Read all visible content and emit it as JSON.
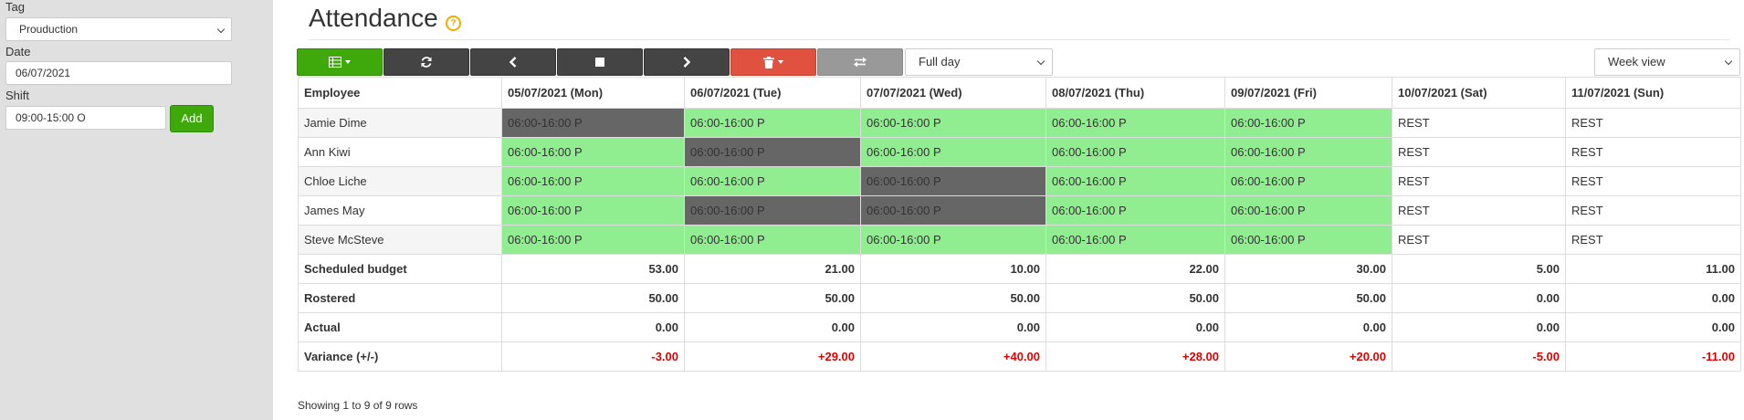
{
  "sidebar": {
    "tag_label": "Tag",
    "tag_value": "Prouduction",
    "date_label": "Date",
    "date_value": "06/07/2021",
    "shift_label": "Shift",
    "shift_value": "09:00-15:00 O",
    "add_label": "Add"
  },
  "header": {
    "title": "Attendance",
    "help_icon": "?"
  },
  "toolbar": {
    "buttons": [
      "table-icon",
      "refresh-icon",
      "chevron-left-icon",
      "stop-icon",
      "chevron-right-icon",
      "trash-icon",
      "swap-icon"
    ],
    "period_select": "Full day",
    "view_select": "Week view"
  },
  "colors": {
    "present": "#90ee90",
    "absent": "#666666",
    "negative": "#e00000",
    "accent": "#3fa80a",
    "danger": "#e05140"
  },
  "table": {
    "header_employee": "Employee",
    "days": [
      "05/07/2021 (Mon)",
      "06/07/2021 (Tue)",
      "07/07/2021 (Wed)",
      "08/07/2021 (Thu)",
      "09/07/2021 (Fri)",
      "10/07/2021 (Sat)",
      "11/07/2021 (Sun)"
    ],
    "rows": [
      {
        "name": "Jamie Dime",
        "cells": [
          "06:00-16:00 P",
          "06:00-16:00 P",
          "06:00-16:00 P",
          "06:00-16:00 P",
          "06:00-16:00 P",
          "REST",
          "REST"
        ]
      },
      {
        "name": "Ann Kiwi",
        "cells": [
          "06:00-16:00 P",
          "06:00-16:00 P",
          "06:00-16:00 P",
          "06:00-16:00 P",
          "06:00-16:00 P",
          "REST",
          "REST"
        ]
      },
      {
        "name": "Chloe Liche",
        "cells": [
          "06:00-16:00 P",
          "06:00-16:00 P",
          "06:00-16:00 P",
          "06:00-16:00 P",
          "06:00-16:00 P",
          "REST",
          "REST"
        ]
      },
      {
        "name": "James May",
        "cells": [
          "06:00-16:00 P",
          "06:00-16:00 P",
          "06:00-16:00 P",
          "06:00-16:00 P",
          "06:00-16:00 P",
          "REST",
          "REST"
        ]
      },
      {
        "name": "Steve McSteve",
        "cells": [
          "06:00-16:00 P",
          "06:00-16:00 P",
          "06:00-16:00 P",
          "06:00-16:00 P",
          "06:00-16:00 P",
          "REST",
          "REST"
        ]
      }
    ],
    "summary": [
      {
        "label": "Scheduled budget",
        "values": [
          "53.00",
          "21.00",
          "10.00",
          "22.00",
          "30.00",
          "5.00",
          "11.00"
        ]
      },
      {
        "label": "Rostered",
        "values": [
          "50.00",
          "50.00",
          "50.00",
          "50.00",
          "50.00",
          "0.00",
          "0.00"
        ]
      },
      {
        "label": "Actual",
        "values": [
          "0.00",
          "0.00",
          "0.00",
          "0.00",
          "0.00",
          "0.00",
          "0.00"
        ]
      },
      {
        "label": "Variance (+/-)",
        "values": [
          "-3.00",
          "+29.00",
          "+40.00",
          "+28.00",
          "+20.00",
          "-5.00",
          "-11.00"
        ]
      }
    ]
  },
  "footer": {
    "text": "Showing 1 to 9 of 9 rows"
  }
}
